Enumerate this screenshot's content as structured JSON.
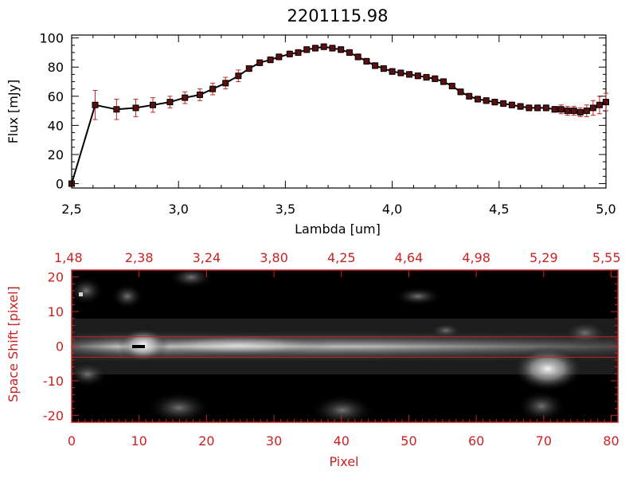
{
  "chart_data": [
    {
      "type": "line",
      "title": "2201115.98",
      "xlabel": "Lambda [um]",
      "ylabel": "Flux [mJy]",
      "xlim": [
        2.5,
        5.0
      ],
      "ylim": [
        -3,
        102
      ],
      "x_ticks": [
        "2.5",
        "3.0",
        "3.5",
        "4.0",
        "4.5",
        "5.0"
      ],
      "y_ticks": [
        "0",
        "20",
        "40",
        "60",
        "80",
        "100"
      ],
      "colors": {
        "line": "#000000",
        "marker": "#5a1010",
        "error_bar": "#cc2222"
      },
      "grid": false,
      "series": [
        {
          "x": [
            2.5,
            2.61,
            2.71,
            2.8,
            2.88,
            2.96,
            3.03,
            3.1,
            3.16,
            3.22,
            3.28,
            3.33,
            3.38,
            3.43,
            3.47,
            3.52,
            3.56,
            3.6,
            3.64,
            3.68,
            3.72,
            3.76,
            3.8,
            3.84,
            3.88,
            3.92,
            3.96,
            4.0,
            4.04,
            4.08,
            4.12,
            4.16,
            4.2,
            4.24,
            4.28,
            4.32,
            4.36,
            4.4,
            4.44,
            4.48,
            4.52,
            4.56,
            4.6,
            4.64,
            4.68,
            4.72,
            4.76,
            4.79,
            4.82,
            4.85,
            4.88,
            4.91,
            4.94,
            4.97,
            5.0
          ],
          "y": [
            0,
            54,
            51,
            52,
            54,
            56,
            59,
            61,
            65,
            69,
            74,
            79,
            83,
            85,
            87,
            89,
            90,
            92,
            93,
            94,
            93,
            92,
            90,
            87,
            84,
            81,
            79,
            77,
            76,
            75,
            74,
            73,
            72,
            70,
            67,
            63,
            60,
            58,
            57,
            56,
            55,
            54,
            53,
            52,
            52,
            52,
            51,
            51,
            50,
            50,
            49,
            50,
            52,
            54,
            56
          ],
          "yerr": [
            0,
            10,
            7,
            6,
            5,
            4,
            4,
            4,
            4,
            4,
            4,
            2,
            2,
            2,
            2,
            2,
            2,
            2,
            2,
            2,
            2,
            2,
            2,
            2,
            2,
            2,
            2,
            2,
            2,
            2,
            2,
            2,
            2,
            2,
            2,
            2,
            2,
            2,
            2,
            2,
            2,
            2,
            2,
            2,
            2,
            2,
            2,
            3,
            3,
            3,
            3,
            4,
            5,
            6,
            6
          ]
        }
      ]
    },
    {
      "type": "heatmap",
      "xlabel": "Pixel",
      "ylabel": "Space Shift [pixel]",
      "xlim": [
        0,
        81
      ],
      "ylim": [
        -22,
        22
      ],
      "x_ticks": [
        "0",
        "10",
        "20",
        "30",
        "40",
        "50",
        "60",
        "70",
        "80"
      ],
      "y_ticks": [
        "-20",
        "-10",
        "0",
        "10",
        "20"
      ],
      "top_ticks": [
        "1.48",
        "2.38",
        "3.24",
        "3.80",
        "4.25",
        "4.64",
        "4.98",
        "5.29",
        "5.55"
      ],
      "colors": {
        "axes": "#cc2222",
        "background": "#000000"
      },
      "horizontal_lines": [
        2.7,
        -3.2
      ]
    }
  ]
}
